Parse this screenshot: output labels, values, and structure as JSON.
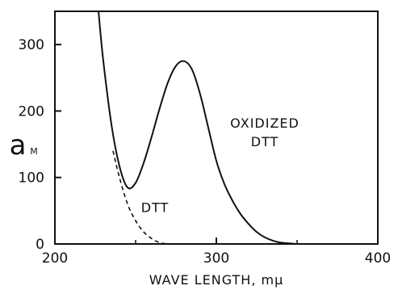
{
  "chart_data": {
    "type": "line",
    "title": "",
    "xlabel": "WAVE LENGTH, mμ",
    "ylabel": "a",
    "ylabel_subscript": "M",
    "xlim": [
      200,
      400
    ],
    "ylim": [
      0,
      350
    ],
    "x_ticks": [
      200,
      300,
      400
    ],
    "x_tick_labels": [
      "200",
      "300",
      "400"
    ],
    "y_ticks": [
      0,
      100,
      200,
      300
    ],
    "y_tick_labels": [
      "0",
      "100",
      "200",
      "300"
    ],
    "grid": false,
    "legend": "none",
    "series": [
      {
        "name": "OXIDIZED DTT",
        "style": "solid",
        "x": [
          227,
          230,
          235,
          240,
          245,
          250,
          255,
          260,
          265,
          270,
          275,
          280,
          285,
          290,
          295,
          300,
          305,
          310,
          315,
          320,
          325,
          330,
          335,
          340,
          345,
          350,
          355,
          360
        ],
        "y": [
          350,
          275,
          180,
          117,
          85,
          92,
          122,
          162,
          205,
          243,
          268,
          275,
          262,
          225,
          175,
          125,
          90,
          65,
          45,
          30,
          18,
          10,
          5,
          2,
          1,
          0,
          0,
          0
        ]
      },
      {
        "name": "DTT",
        "style": "dashed",
        "x": [
          236,
          240,
          245,
          250,
          255,
          260,
          265,
          270
        ],
        "y": [
          140,
          100,
          60,
          35,
          18,
          8,
          2,
          0
        ]
      }
    ],
    "annotations": [
      {
        "text_lines": [
          "OXIDIZED",
          "DTT"
        ],
        "x": 330,
        "y": 175
      },
      {
        "text_lines": [
          "DTT"
        ],
        "x": 262,
        "y": 48
      }
    ]
  }
}
